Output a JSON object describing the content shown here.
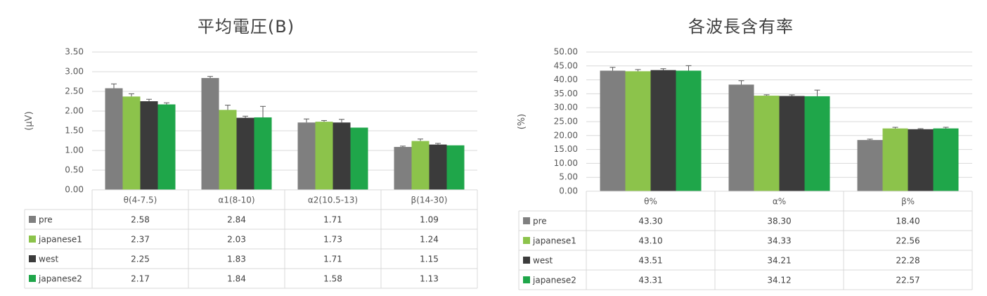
{
  "colors": {
    "pre": "#7f7f7f",
    "japanese1": "#8cc34b",
    "west": "#3b3b3b",
    "japanese2": "#1fa64a"
  },
  "chart_data": [
    {
      "type": "bar",
      "title": "平均電圧(B)",
      "ylabel": "(μV)",
      "xlabel": "",
      "ylim": [
        0,
        3.5
      ],
      "yticks": [
        "0.00",
        "0.50",
        "1.00",
        "1.50",
        "2.00",
        "2.50",
        "3.00",
        "3.50"
      ],
      "grid": true,
      "legend": "data-table",
      "categories": [
        "θ(4-7.5)",
        "α1(8-10)",
        "α2(10.5-13)",
        "β(14-30)"
      ],
      "series": [
        {
          "name": "pre",
          "values": [
            2.58,
            2.84,
            1.71,
            1.09
          ],
          "labels": [
            "2.58",
            "2.84",
            "1.71",
            "1.09"
          ],
          "error": [
            0.11,
            0.04,
            0.09,
            0.02
          ]
        },
        {
          "name": "japanese1",
          "values": [
            2.37,
            2.03,
            1.73,
            1.24
          ],
          "labels": [
            "2.37",
            "2.03",
            "1.73",
            "1.24"
          ],
          "error": [
            0.07,
            0.12,
            0.03,
            0.05
          ]
        },
        {
          "name": "west",
          "values": [
            2.25,
            1.83,
            1.71,
            1.15
          ],
          "labels": [
            "2.25",
            "1.83",
            "1.71",
            "1.15"
          ],
          "error": [
            0.05,
            0.04,
            0.08,
            0.03
          ]
        },
        {
          "name": "japanese2",
          "values": [
            2.17,
            1.84,
            1.58,
            1.13
          ],
          "labels": [
            "2.17",
            "1.84",
            "1.58",
            "1.13"
          ],
          "error": [
            0.04,
            0.28,
            0.0,
            0.0
          ]
        }
      ]
    },
    {
      "type": "bar",
      "title": "各波長含有率",
      "ylabel": "(%)",
      "xlabel": "",
      "ylim": [
        0,
        50
      ],
      "yticks": [
        "0.00",
        "5.00",
        "10.00",
        "15.00",
        "20.00",
        "25.00",
        "30.00",
        "35.00",
        "40.00",
        "45.00",
        "50.00"
      ],
      "grid": true,
      "legend": "data-table",
      "categories": [
        "θ%",
        "α%",
        "β%"
      ],
      "series": [
        {
          "name": "pre",
          "values": [
            43.3,
            38.3,
            18.4
          ],
          "labels": [
            "43.30",
            "38.30",
            "18.40"
          ],
          "error": [
            1.2,
            1.4,
            0.3
          ]
        },
        {
          "name": "japanese1",
          "values": [
            43.1,
            34.33,
            22.56
          ],
          "labels": [
            "43.10",
            "34.33",
            "22.56"
          ],
          "error": [
            0.6,
            0.3,
            0.4
          ]
        },
        {
          "name": "west",
          "values": [
            43.51,
            34.21,
            22.28
          ],
          "labels": [
            "43.51",
            "34.21",
            "22.28"
          ],
          "error": [
            0.5,
            0.4,
            0.2
          ]
        },
        {
          "name": "japanese2",
          "values": [
            43.31,
            34.12,
            22.57
          ],
          "labels": [
            "43.31",
            "34.12",
            "22.57"
          ],
          "error": [
            1.8,
            2.2,
            0.4
          ]
        }
      ]
    }
  ]
}
